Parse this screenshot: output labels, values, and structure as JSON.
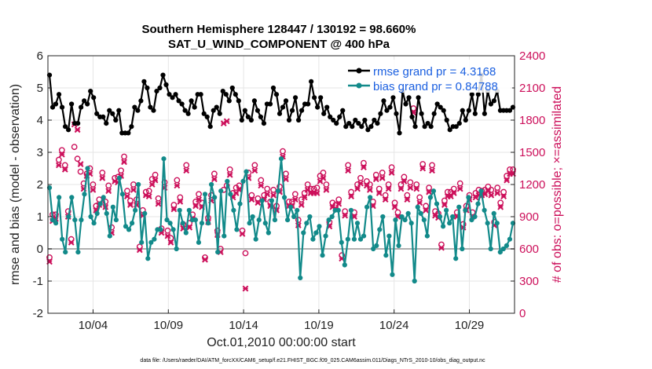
{
  "chart_data": {
    "type": "line",
    "title": "Southern Hemisphere 128447 / 130192 = 98.660%",
    "subtitle": "SAT_U_WIND_COMPONENT @ 400 hPa",
    "xlabel": "Oct.01,2010 00:00:00 start",
    "ylabel": "rmse and bias (model - observation)",
    "ylabel_right": "# of obs: o=possible; ×=assimilated",
    "x_ticks": [
      "10/04",
      "10/09",
      "10/14",
      "10/19",
      "10/24",
      "10/29"
    ],
    "x_tick_days": [
      4,
      9,
      14,
      19,
      24,
      29
    ],
    "xlim": [
      1,
      32
    ],
    "ylim": [
      -2,
      6
    ],
    "yticks": [
      "-2",
      "-1",
      "0",
      "1",
      "2",
      "3",
      "4",
      "5",
      "6"
    ],
    "ylim_right": [
      0,
      2400
    ],
    "yticks_right": [
      "0",
      "300",
      "600",
      "900",
      "1200",
      "1500",
      "1800",
      "2100",
      "2400"
    ],
    "footnote": "data file: /Users/raeder/DAI/ATM_forcXX/CAM6_setup/f.e21.FHIST_BGC.f09_025.CAM6assim.011/Diags_NTrS_2010-10/obs_diag_output.nc",
    "legend": {
      "rmse": "rmse grand pr = 4.3168",
      "bias": "bias grand pr = 0.84788"
    },
    "colors": {
      "rmse": "#000000",
      "bias": "#128a8a",
      "obs": "#cc0f5a",
      "zero_line": "#b0b0b0",
      "grid": "#e6e6e6"
    },
    "series": [
      {
        "name": "rmse",
        "axis": "left",
        "values": [
          5.4,
          4.4,
          4.5,
          4.8,
          4.4,
          3.8,
          3.7,
          4.5,
          3.9,
          3.9,
          4.4,
          4.6,
          4.5,
          4.9,
          4.7,
          4.2,
          4.1,
          4.1,
          3.9,
          4.3,
          4.2,
          4.0,
          4.3,
          3.6,
          3.6,
          3.6,
          3.8,
          4.4,
          4.3,
          4.6,
          5.2,
          5.0,
          4.4,
          4.3,
          4.9,
          5.0,
          5.4,
          5.1,
          4.8,
          4.7,
          4.8,
          4.6,
          4.5,
          4.3,
          4.2,
          4.6,
          4.4,
          4.8,
          4.8,
          4.2,
          4.1,
          3.8,
          4.3,
          4.4,
          4.2,
          4.9,
          4.8,
          4.6,
          5.0,
          4.8,
          4.6,
          4.0,
          4.3,
          4.1,
          4.0,
          4.6,
          4.3,
          4.1,
          3.9,
          4.5,
          4.5,
          5.0,
          4.8,
          4.2,
          4.4,
          4.6,
          4.0,
          4.3,
          4.7,
          4.0,
          4.3,
          4.5,
          4.5,
          5.2,
          4.7,
          4.4,
          4.7,
          4.2,
          4.4,
          4.1,
          4.0,
          3.9,
          4.1,
          4.3,
          3.8,
          3.9,
          3.8,
          4.0,
          3.9,
          3.8,
          4.0,
          3.7,
          3.8,
          4.0,
          3.9,
          4.2,
          4.6,
          4.3,
          4.4,
          4.7,
          4.2,
          3.6,
          4.9,
          4.5,
          4.7,
          4.1,
          3.8,
          4.7,
          4.2,
          3.8,
          3.9,
          3.8,
          4.2,
          4.5,
          4.4,
          4.3,
          4.0,
          3.7,
          3.8,
          3.8,
          3.9,
          4.3,
          4.0,
          4.3,
          4.8,
          4.2,
          4.8,
          5.4,
          4.2,
          4.9,
          4.5,
          4.6,
          4.9,
          4.3,
          4.3,
          4.3,
          4.3,
          4.4
        ]
      },
      {
        "name": "bias",
        "axis": "left",
        "values": [
          1.9,
          0.9,
          0.8,
          1.6,
          0.3,
          -0.1,
          1.0,
          1.6,
          0.9,
          -0.1,
          0.9,
          1.7,
          2.5,
          1.0,
          0.8,
          1.1,
          1.4,
          1.6,
          1.1,
          0.4,
          1.3,
          0.9,
          2.2,
          1.7,
          0.7,
          0.6,
          0.8,
          1.2,
          2.0,
          0.2,
          1.1,
          -0.3,
          0.2,
          0.3,
          0.6,
          0.6,
          2.8,
          0.9,
          0.8,
          0.6,
          0.0,
          1.2,
          0.8,
          0.5,
          1.2,
          0.9,
          0.9,
          0.2,
          0.8,
          1.7,
          0.8,
          2.0,
          1.6,
          -0.1,
          1.8,
          0.4,
          2.1,
          1.7,
          1.2,
          0.6,
          1.4,
          2.1,
          2.4,
          0.8,
          1.0,
          0.3,
          0.9,
          1.5,
          0.8,
          0.5,
          1.5,
          0.9,
          1.8,
          2.8,
          1.6,
          0.9,
          1.3,
          1.0,
          1.2,
          -0.9,
          0.5,
          0.8,
          1.0,
          0.3,
          0.5,
          0.7,
          -0.2,
          0.4,
          0.9,
          1.0,
          1.2,
          1.2,
          0.2,
          -0.5,
          0.3,
          1.2,
          0.3,
          0.8,
          0.3,
          0.4,
          1.3,
          1.6,
          0.0,
          0.1,
          0.6,
          1.0,
          -0.2,
          0.4,
          -0.8,
          0.9,
          0.1,
          1.0,
          0.9,
          1.1,
          0.8,
          -1.0,
          1.3,
          1.1,
          0.9,
          0.4,
          1.6,
          1.8,
          1.4,
          1.0,
          0.7,
          1.2,
          0.8,
          1.0,
          -0.3,
          1.3,
          0.0,
          1.2,
          1.6,
          0.9,
          1.0,
          1.4,
          1.8,
          1.2,
          0.8,
          0.0,
          1.1,
          0.8,
          -0.1,
          0.0,
          0.1,
          0.3,
          0.8
        ]
      },
      {
        "name": "obs_possible",
        "axis": "right",
        "marker": "o",
        "values": [
          520,
          920,
          920,
          1430,
          1520,
          1380,
          950,
          690,
          1550,
          1440,
          1320,
          1210,
          1300,
          1350,
          1200,
          1000,
          1060,
          1310,
          1040,
          1190,
          800,
          1260,
          1270,
          1330,
          1460,
          1140,
          1050,
          1200,
          1060,
          620,
          960,
          1130,
          1140,
          1250,
          1290,
          1070,
          790,
          1220,
          770,
          700,
          1010,
          1240,
          1080,
          830,
          1380,
          840,
          920,
          1040,
          1110,
          1030,
          520,
          890,
          1100,
          1300,
          770,
          600,
          1150,
          1190,
          1340,
          1120,
          1170,
          1190,
          770,
          560,
          1310,
          1100,
          1380,
          1070,
          1240,
          1100,
          1160,
          1040,
          1150,
          1000,
          1180,
          1510,
          1300,
          1040,
          1040,
          1110,
          870,
          1060,
          1120,
          1200,
          1160,
          1160,
          1170,
          1280,
          1310,
          1200,
          850,
          1030,
          1010,
          1060,
          540,
          950,
          1380,
          1130,
          940,
          1200,
          1260,
          1400,
          1230,
          1200,
          1040,
          1290,
          1160,
          1310,
          1100,
          1200,
          1360,
          1030,
          940,
          1200,
          1270,
          1100,
          1220,
          1910,
          1200,
          1080,
          1390,
          1000,
          1170,
          1380,
          950,
          930,
          640,
          1050,
          1130,
          1130,
          1160,
          940,
          1210,
          830,
          1000,
          1100,
          940,
          1120,
          1150,
          1140,
          1150,
          1180,
          1150,
          850,
          1170,
          1030,
          1130,
          1280,
          1340,
          1340
        ]
      },
      {
        "name": "obs_assimilated",
        "axis": "right",
        "marker": "x",
        "values": [
          480,
          860,
          880,
          1380,
          1480,
          1340,
          900,
          660,
          1760,
          1710,
          1390,
          1160,
          1280,
          1300,
          1150,
          960,
          1010,
          1260,
          990,
          1140,
          750,
          1230,
          1220,
          1280,
          1410,
          1090,
          1010,
          1150,
          1010,
          590,
          910,
          1100,
          1090,
          1200,
          1240,
          1020,
          750,
          1170,
          720,
          660,
          970,
          1190,
          1040,
          790,
          1330,
          800,
          880,
          1000,
          1060,
          990,
          500,
          850,
          1050,
          1250,
          730,
          570,
          1770,
          1790,
          1290,
          1080,
          1120,
          1150,
          740,
          230,
          1260,
          1060,
          1330,
          1030,
          1190,
          1060,
          1110,
          1000,
          1100,
          960,
          1130,
          1460,
          1250,
          1000,
          1000,
          1060,
          820,
          1010,
          1080,
          1150,
          1120,
          1120,
          1120,
          1230,
          1260,
          1150,
          810,
          990,
          970,
          1020,
          510,
          910,
          1330,
          1090,
          900,
          1160,
          1210,
          1360,
          1190,
          1150,
          1000,
          1250,
          1120,
          1260,
          1060,
          1160,
          1310,
          990,
          900,
          1160,
          1230,
          1060,
          1170,
          1870,
          1160,
          1030,
          1350,
          960,
          1130,
          1330,
          910,
          890,
          610,
          1010,
          1090,
          1090,
          1120,
          900,
          1160,
          800,
          960,
          1060,
          900,
          1080,
          1100,
          1100,
          1110,
          1140,
          1100,
          820,
          1120,
          990,
          1090,
          1240,
          1300,
          1300
        ]
      }
    ]
  }
}
